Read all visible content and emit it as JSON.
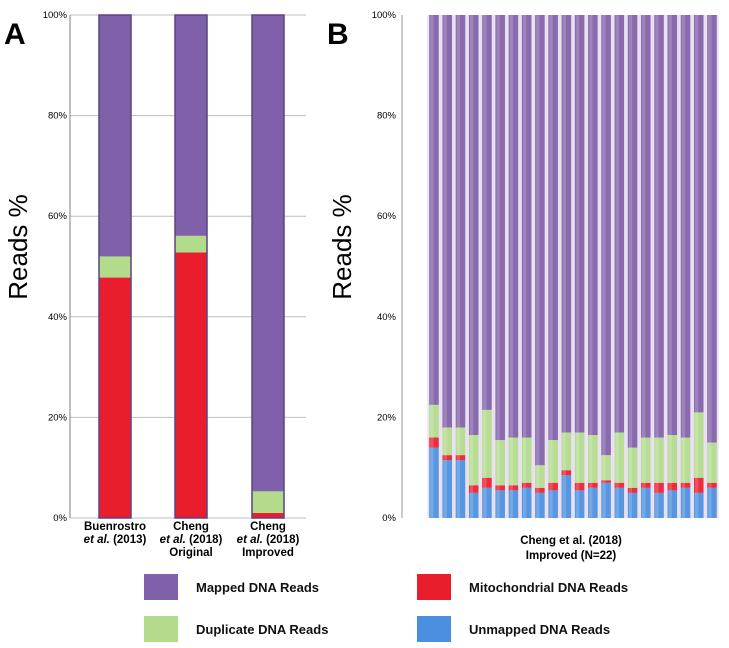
{
  "chart_data": [
    {
      "type": "bar",
      "stacked": true,
      "panel": "A",
      "ylabel": "Reads %",
      "yticks": [
        "0%",
        "20%",
        "40%",
        "60%",
        "80%",
        "100%"
      ],
      "ylim": [
        0,
        100
      ],
      "grid": true,
      "categories": [
        [
          "Buenrostro",
          "et al. (2013)"
        ],
        [
          "Cheng",
          "et al. (2018)",
          "Original"
        ],
        [
          "Cheng",
          "et al. (2018)",
          "Improved"
        ]
      ],
      "series": [
        {
          "name": "Unmapped DNA Reads",
          "color": "#4a8fe0",
          "values": [
            0,
            0,
            0
          ]
        },
        {
          "name": "Mitochondrial DNA Reads",
          "color": "#ea1d2c",
          "values": [
            47.8,
            52.8,
            1.0
          ]
        },
        {
          "name": "Duplicate DNA Reads",
          "color": "#b2dc8c",
          "values": [
            4.2,
            3.3,
            4.3
          ]
        },
        {
          "name": "Mapped DNA Reads",
          "color": "#8060a8",
          "values": [
            48.0,
            43.9,
            94.7
          ]
        }
      ]
    },
    {
      "type": "bar",
      "stacked": true,
      "panel": "B",
      "ylabel": "Reads %",
      "yticks": [
        "0%",
        "20%",
        "40%",
        "60%",
        "80%",
        "100%"
      ],
      "ylim": [
        0,
        100
      ],
      "grid": false,
      "xlabel": [
        "Cheng et al. (2018)",
        "Improved (N=22)"
      ],
      "series": [
        {
          "name": "Unmapped DNA Reads",
          "color": "#4a8fe0",
          "values": [
            14,
            11.5,
            11.5,
            5,
            6,
            5.5,
            5.5,
            6,
            5,
            5.5,
            8.5,
            5.5,
            6,
            7,
            6,
            5,
            6,
            5,
            5.5,
            6,
            5,
            6
          ]
        },
        {
          "name": "Mitochondrial DNA Reads",
          "color": "#ea1d2c",
          "values": [
            2,
            1,
            1,
            1.5,
            2,
            1,
            1,
            1,
            1,
            1.5,
            1,
            1.5,
            1,
            0.5,
            1,
            1,
            1,
            2,
            1.5,
            1,
            3,
            1
          ]
        },
        {
          "name": "Duplicate DNA Reads",
          "color": "#b2dc8c",
          "values": [
            6.5,
            5.5,
            5.5,
            10,
            13.5,
            9,
            9.5,
            9,
            4.5,
            8.5,
            7.5,
            10,
            9.5,
            5,
            10,
            8,
            9,
            9,
            9.5,
            9,
            13,
            8
          ]
        },
        {
          "name": "Mapped DNA Reads",
          "color": "#8060a8",
          "values": [
            77.5,
            82,
            82,
            83.5,
            78.5,
            84.5,
            84,
            84,
            89.5,
            84.5,
            83,
            83,
            83.5,
            87.5,
            83,
            86,
            84,
            84,
            83.5,
            84,
            79,
            85
          ]
        }
      ]
    }
  ],
  "legend": [
    {
      "label": "Mapped DNA Reads",
      "color": "#8060a8"
    },
    {
      "label": "Mitochondrial DNA Reads",
      "color": "#ea1d2c"
    },
    {
      "label": "Duplicate DNA Reads",
      "color": "#b2dc8c"
    },
    {
      "label": "Unmapped DNA Reads",
      "color": "#4a8fe0"
    }
  ]
}
